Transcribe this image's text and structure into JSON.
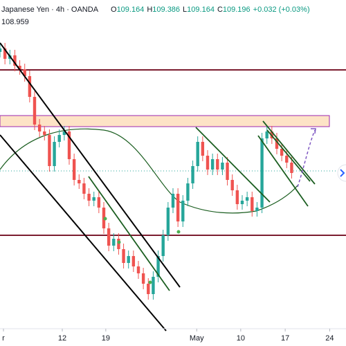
{
  "header": {
    "symbol": "Japanese Yen · 4h · OANDA",
    "ohlc": [
      {
        "label": "O",
        "value": "109.164"
      },
      {
        "label": "H",
        "value": "109.386"
      },
      {
        "label": "L",
        "value": "109.164"
      },
      {
        "label": "C",
        "value": "109.196"
      }
    ],
    "change": "+0.032 (+0.03%)",
    "indicator": "108.959"
  },
  "chart_data": {
    "type": "candlestick",
    "xlim": [
      0,
      70
    ],
    "ylim": [
      106.97,
      111.67
    ],
    "xticks": [
      {
        "value": 0.7,
        "label": "r"
      },
      {
        "value": 12.6,
        "label": "12"
      },
      {
        "value": 21.4,
        "label": "19"
      },
      {
        "value": 39.8,
        "label": "May"
      },
      {
        "value": 48.7,
        "label": "10"
      },
      {
        "value": 57.7,
        "label": "17"
      },
      {
        "value": 66.7,
        "label": "24"
      }
    ],
    "up_color": "#26a69a",
    "down_color": "#ef5350",
    "open": [
      110.92,
      110.97,
      110.82,
      110.87,
      110.72,
      110.67,
      110.57,
      110.27,
      109.87,
      109.77,
      109.72,
      109.27,
      109.62,
      109.72,
      109.77,
      109.37,
      109.07,
      109.02,
      108.87,
      108.77,
      108.82,
      108.67,
      108.37,
      108.12,
      108.22,
      108.07,
      107.87,
      107.97,
      107.82,
      107.72,
      107.57,
      107.42,
      107.67,
      107.97,
      108.27,
      108.67,
      108.87,
      108.47,
      108.77,
      109.02,
      109.27,
      109.62,
      109.42,
      109.22,
      109.37,
      109.22,
      109.32,
      109.07,
      108.92,
      108.72,
      108.77,
      108.82,
      108.62,
      108.67,
      109.67,
      109.77,
      109.67,
      109.52,
      109.42,
      109.32
    ],
    "high": [
      111.05,
      111.05,
      110.95,
      110.95,
      110.8,
      110.75,
      110.65,
      110.35,
      109.95,
      109.85,
      109.8,
      109.7,
      109.8,
      109.85,
      109.85,
      109.45,
      109.15,
      109.1,
      108.95,
      108.9,
      108.9,
      108.75,
      108.45,
      108.3,
      108.3,
      108.15,
      108.05,
      108.05,
      107.9,
      107.8,
      107.65,
      107.75,
      108.05,
      108.35,
      108.75,
      108.95,
      108.95,
      108.85,
      109.1,
      109.35,
      109.7,
      109.7,
      109.5,
      109.45,
      109.45,
      109.4,
      109.4,
      109.15,
      109.0,
      108.85,
      108.9,
      108.9,
      108.75,
      109.75,
      109.85,
      109.85,
      109.75,
      109.6,
      109.5,
      109.4
    ],
    "low": [
      110.84,
      110.74,
      110.74,
      110.64,
      110.59,
      110.49,
      110.19,
      109.79,
      109.69,
      109.64,
      109.19,
      109.19,
      109.54,
      109.64,
      109.29,
      108.99,
      108.94,
      108.79,
      108.69,
      108.69,
      108.59,
      108.29,
      108.04,
      108.04,
      107.99,
      107.79,
      107.79,
      107.74,
      107.64,
      107.49,
      107.34,
      107.34,
      107.59,
      107.89,
      108.19,
      108.59,
      108.39,
      108.39,
      108.69,
      108.94,
      109.19,
      109.34,
      109.14,
      109.14,
      109.14,
      109.14,
      108.99,
      108.84,
      108.64,
      108.64,
      108.69,
      108.54,
      108.54,
      108.59,
      109.59,
      109.59,
      109.44,
      109.34,
      109.24,
      109.09
    ],
    "close": [
      110.97,
      110.82,
      110.87,
      110.72,
      110.67,
      110.57,
      110.27,
      109.87,
      109.77,
      109.72,
      109.27,
      109.62,
      109.72,
      109.77,
      109.37,
      109.07,
      109.02,
      108.87,
      108.77,
      108.82,
      108.67,
      108.37,
      108.12,
      108.22,
      108.07,
      107.87,
      107.97,
      107.82,
      107.72,
      107.57,
      107.42,
      107.67,
      107.97,
      108.27,
      108.67,
      108.87,
      108.47,
      108.77,
      109.02,
      109.27,
      109.62,
      109.42,
      109.22,
      109.37,
      109.22,
      109.32,
      109.07,
      108.92,
      108.72,
      108.77,
      108.82,
      108.62,
      108.67,
      109.67,
      109.77,
      109.67,
      109.52,
      109.42,
      109.32,
      109.17
    ]
  }
}
